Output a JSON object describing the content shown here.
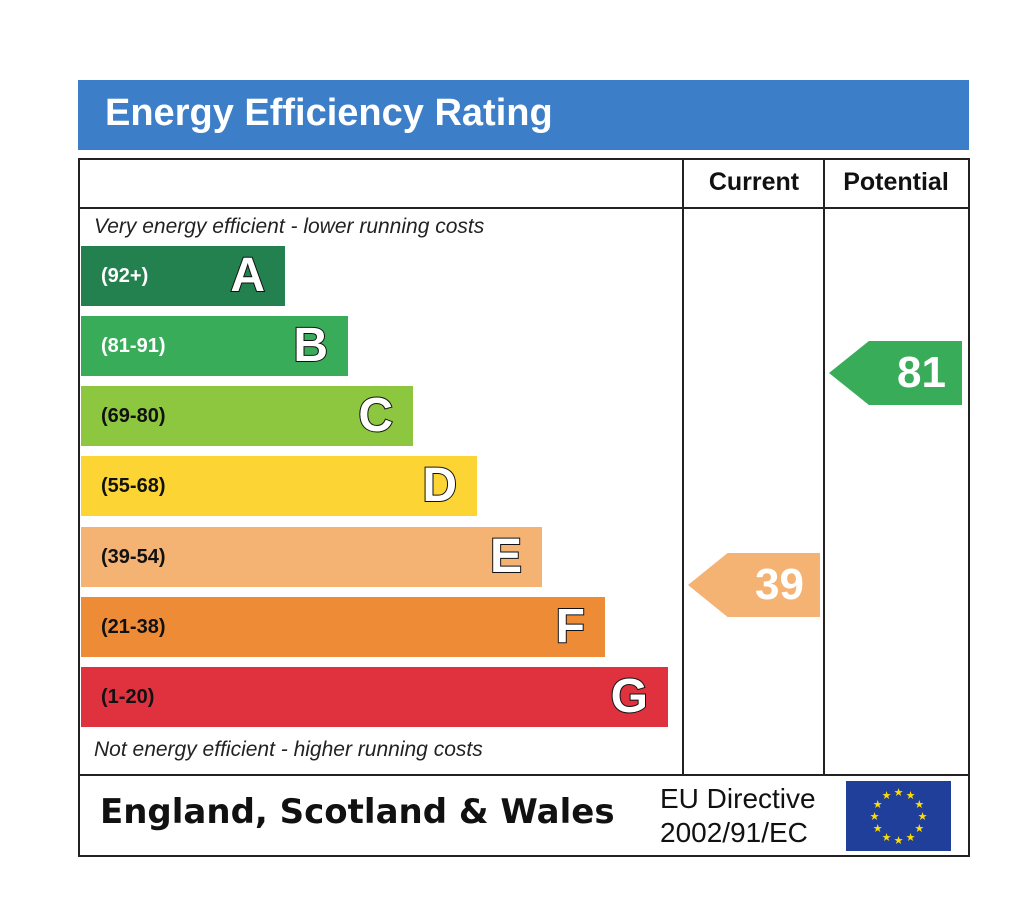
{
  "chart_data": {
    "type": "bar",
    "title": "Energy Efficiency Rating",
    "columns": [
      "Current",
      "Potential"
    ],
    "top_note": "Very energy efficient - lower running costs",
    "bottom_note": "Not energy efficient - higher running costs",
    "bands": [
      {
        "letter": "A",
        "range": "(92+)",
        "color": "#23804f",
        "text_color": "#ffffff"
      },
      {
        "letter": "B",
        "range": "(81-91)",
        "color": "#39ac5a",
        "text_color": "#ffffff"
      },
      {
        "letter": "C",
        "range": "(69-80)",
        "color": "#8dc63f",
        "text_color": "#111111"
      },
      {
        "letter": "D",
        "range": "(55-68)",
        "color": "#fcd433",
        "text_color": "#111111"
      },
      {
        "letter": "E",
        "range": "(39-54)",
        "color": "#f4b273",
        "text_color": "#111111"
      },
      {
        "letter": "F",
        "range": "(21-38)",
        "color": "#ee8b37",
        "text_color": "#111111"
      },
      {
        "letter": "G",
        "range": "(1-20)",
        "color": "#e0313f",
        "text_color": "#111111"
      }
    ],
    "current": {
      "value": "39",
      "band": "E",
      "color": "#f4b273"
    },
    "potential": {
      "value": "81",
      "band": "B",
      "color": "#39ac5a"
    }
  },
  "footer": {
    "region": "England, Scotland & Wales",
    "directive_line1": "EU Directive",
    "directive_line2": "2002/91/EC",
    "flag": "eu-flag"
  }
}
